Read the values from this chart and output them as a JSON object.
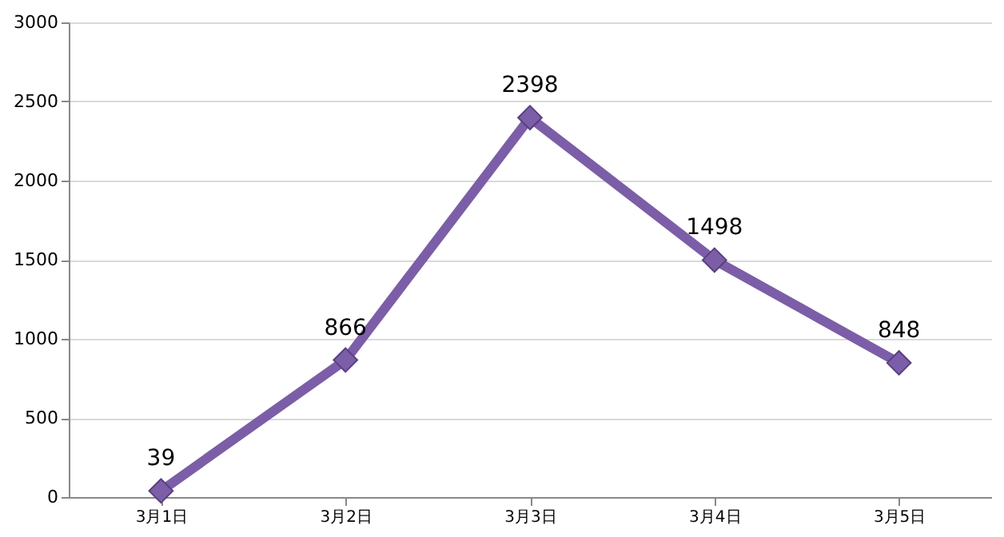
{
  "chart_data": {
    "type": "line",
    "categories": [
      "3月1日",
      "3月2日",
      "3月3日",
      "3月4日",
      "3月5日"
    ],
    "series": [
      {
        "color": "#7b5ea7",
        "values": [
          39,
          866,
          2398,
          1498,
          848
        ]
      }
    ],
    "ylim": [
      0,
      3000
    ],
    "yticks": [
      0,
      500,
      1000,
      1500,
      2000,
      2500,
      3000
    ],
    "grid": "y",
    "marker": "diamond",
    "line_style": "solid",
    "data_labels": true,
    "legend": false
  }
}
